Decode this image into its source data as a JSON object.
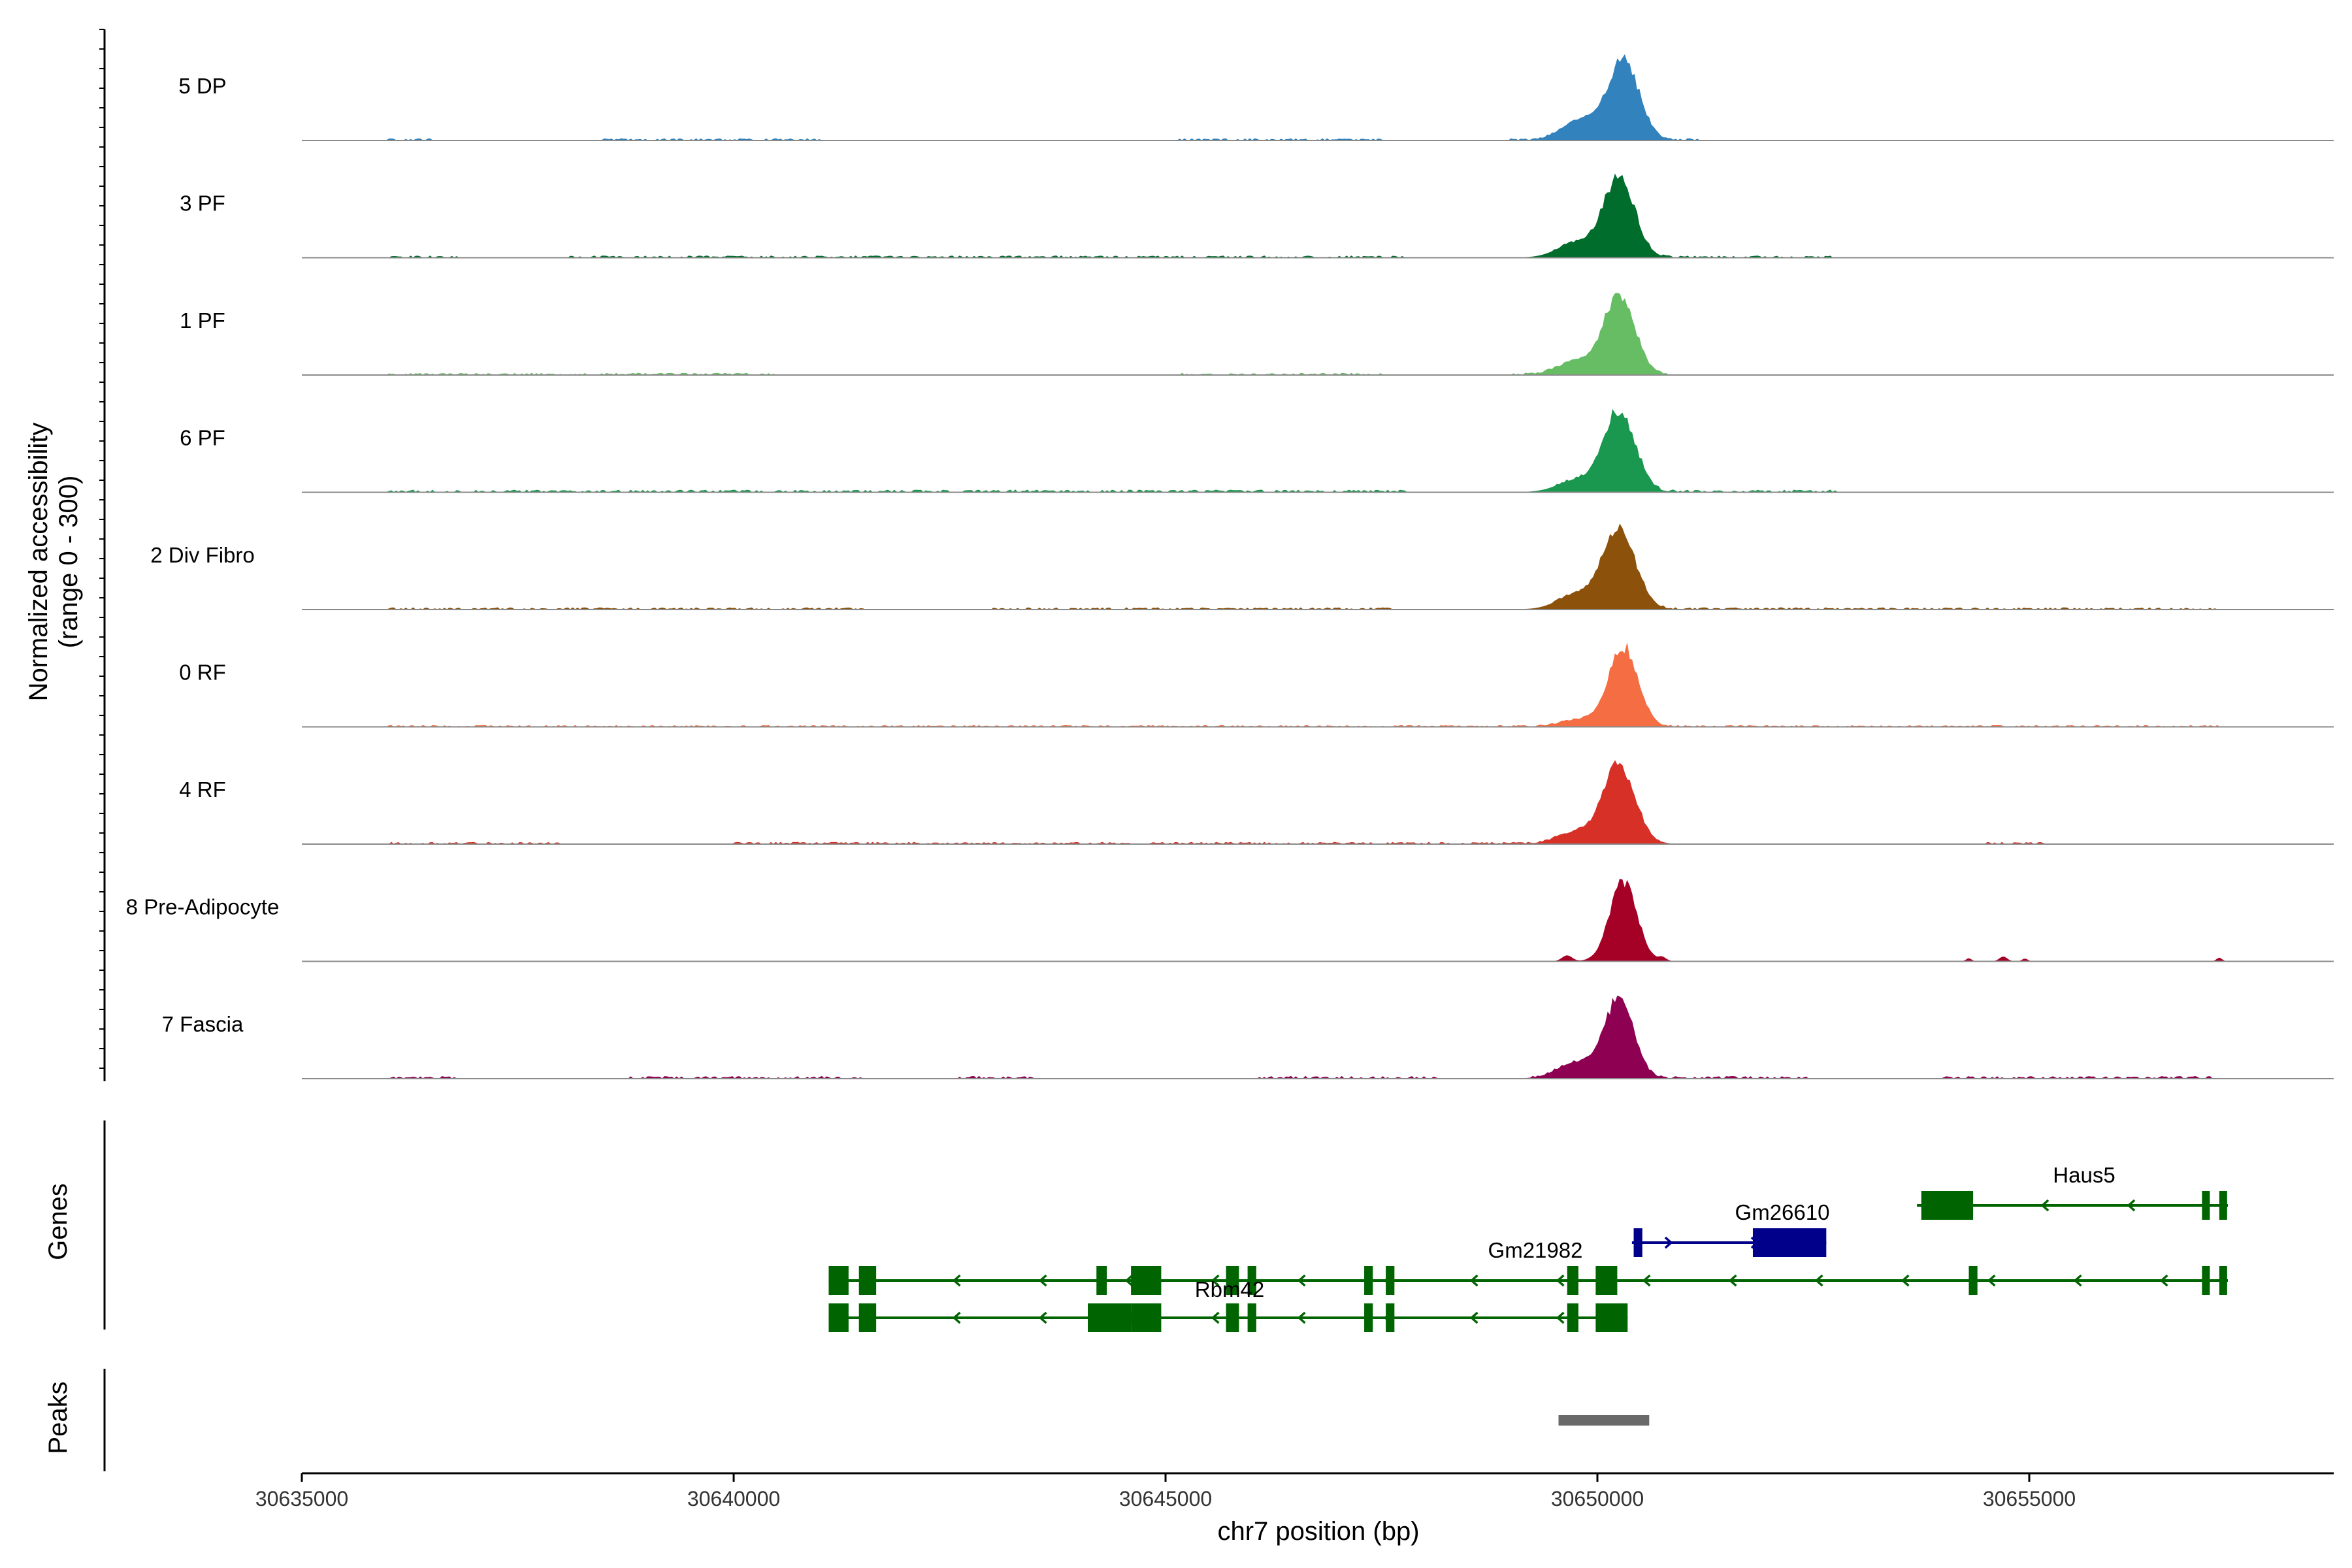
{
  "chart_data": {
    "type": "area",
    "title": "",
    "ylabel_line1": "Normalized accessibility",
    "ylabel_line2": "(range 0 - 300)",
    "xlabel": "chr7 position (bp)",
    "xlim": [
      30635000,
      30658400
    ],
    "ylim": [
      0,
      300
    ],
    "x_ticks": [
      30635000,
      30640000,
      30645000,
      30650000,
      30655000
    ],
    "x_tick_labels": [
      "30635000",
      "30640000",
      "30645000",
      "30650000",
      "30655000"
    ],
    "grid": false,
    "tracks_label_genes": "Genes",
    "tracks_label_peaks": "Peaks",
    "series": [
      {
        "name": "5 DP",
        "color": "#3182bd",
        "peak_center": 30650300,
        "peak_width": 320,
        "peak_height": 300,
        "shoulder_height": 70,
        "background_spans": [
          [
            30636000,
            30636500
          ],
          [
            30638500,
            30641000
          ],
          [
            30645000,
            30647500
          ],
          [
            30649000,
            30651200
          ]
        ],
        "background_level": 4,
        "side_peaks": []
      },
      {
        "name": "3 PF",
        "color": "#006d2c",
        "peak_center": 30650250,
        "peak_width": 320,
        "peak_height": 300,
        "shoulder_height": 50,
        "background_spans": [
          [
            30636000,
            30636800
          ],
          [
            30638000,
            30647800
          ],
          [
            30649500,
            30652700
          ]
        ],
        "background_level": 4,
        "side_peaks": []
      },
      {
        "name": "1 PF",
        "color": "#66bd63",
        "peak_center": 30650250,
        "peak_width": 320,
        "peak_height": 300,
        "shoulder_height": 45,
        "background_spans": [
          [
            30636000,
            30640500
          ],
          [
            30645000,
            30647500
          ],
          [
            30649000,
            30650800
          ]
        ],
        "background_level": 4,
        "side_peaks": []
      },
      {
        "name": "6 PF",
        "color": "#1a9850",
        "peak_center": 30650250,
        "peak_width": 330,
        "peak_height": 300,
        "shoulder_height": 40,
        "background_spans": [
          [
            30636000,
            30647800
          ],
          [
            30649500,
            30652800
          ]
        ],
        "background_level": 5,
        "side_peaks": []
      },
      {
        "name": "2 Div Fibro",
        "color": "#8c510a",
        "peak_center": 30650250,
        "peak_width": 340,
        "peak_height": 300,
        "shoulder_height": 50,
        "background_spans": [
          [
            30636000,
            30641500
          ],
          [
            30643000,
            30647700
          ],
          [
            30649500,
            30657200
          ]
        ],
        "background_level": 4,
        "side_peaks": []
      },
      {
        "name": "0 RF",
        "color": "#f46d43",
        "peak_center": 30650300,
        "peak_width": 300,
        "peak_height": 300,
        "shoulder_height": 25,
        "background_spans": [
          [
            30636000,
            30657200
          ]
        ],
        "background_level": 3,
        "side_peaks": []
      },
      {
        "name": "4 RF",
        "color": "#d73027",
        "peak_center": 30650250,
        "peak_width": 330,
        "peak_height": 300,
        "shoulder_height": 40,
        "background_spans": [
          [
            30636000,
            30638000
          ],
          [
            30640000,
            30650200
          ],
          [
            30654500,
            30655200
          ]
        ],
        "background_level": 4,
        "side_peaks": []
      },
      {
        "name": "8 Pre-Adipocyte",
        "color": "#a50026",
        "peak_center": 30650300,
        "peak_width": 280,
        "peak_height": 300,
        "shoulder_height": 0,
        "background_spans": [],
        "background_level": 0,
        "side_peaks": [
          [
            30649650,
            80,
            20
          ],
          [
            30650750,
            60,
            12
          ],
          [
            30654300,
            40,
            10
          ],
          [
            30654700,
            60,
            16
          ],
          [
            30654950,
            40,
            9
          ],
          [
            30657200,
            40,
            12
          ]
        ]
      },
      {
        "name": "7 Fascia",
        "color": "#8e0152",
        "peak_center": 30650250,
        "peak_width": 300,
        "peak_height": 300,
        "shoulder_height": 55,
        "background_spans": [
          [
            30636000,
            30636800
          ],
          [
            30638800,
            30641500
          ],
          [
            30642600,
            30643500
          ],
          [
            30646000,
            30648200
          ],
          [
            30649200,
            30652500
          ],
          [
            30654000,
            30657200
          ]
        ],
        "background_level": 5,
        "side_peaks": []
      }
    ],
    "genes": [
      {
        "name": "Haus5",
        "strand": "-",
        "color": "#006400",
        "row": 0,
        "start": 30653700,
        "end": 30657300,
        "exons": [
          [
            30653750,
            30654350,
            "wide"
          ],
          [
            30657000,
            30657080,
            "thin"
          ],
          [
            30657200,
            30657280,
            "thin"
          ]
        ]
      },
      {
        "name": "Gm26610",
        "strand": "+",
        "color": "#00008b",
        "row": 1,
        "start": 30650400,
        "end": 30652650,
        "exons": [
          [
            30650420,
            30650520,
            "thin"
          ],
          [
            30651800,
            30652650,
            "wide"
          ]
        ]
      },
      {
        "name": "Gm21982",
        "strand": "-",
        "color": "#006400",
        "row": 2,
        "start": 30649600,
        "end": 30650550,
        "exons": [
          [
            30649650,
            30649780,
            "thin"
          ],
          [
            30649980,
            30650230,
            "wide"
          ]
        ]
      },
      {
        "name": "Rbm42",
        "strand": "-",
        "color": "#006400",
        "row": 2,
        "start": 30641100,
        "end": 30657300,
        "exons": [
          [
            30641100,
            30641330,
            "wide"
          ],
          [
            30641450,
            30641650,
            "wide"
          ],
          [
            30644200,
            30644320,
            "thin"
          ],
          [
            30644600,
            30644950,
            "wide"
          ],
          [
            30645700,
            30645850,
            "thin"
          ],
          [
            30645950,
            30646050,
            "thin"
          ],
          [
            30647300,
            30647400,
            "thin"
          ],
          [
            30647550,
            30647650,
            "thin"
          ],
          [
            30654300,
            30654400,
            "thin"
          ],
          [
            30657000,
            30657080,
            "thin"
          ],
          [
            30657200,
            30657280,
            "thin"
          ]
        ]
      },
      {
        "name": "",
        "strand": "-",
        "color": "#006400",
        "row": 3,
        "start": 30641100,
        "end": 30650350,
        "exons": [
          [
            30641100,
            30641330,
            "wide"
          ],
          [
            30641450,
            30641650,
            "wide"
          ],
          [
            30644100,
            30644600,
            "wide"
          ],
          [
            30644600,
            30644950,
            "wide"
          ],
          [
            30645700,
            30645850,
            "thin"
          ],
          [
            30645950,
            30646050,
            "thin"
          ],
          [
            30647300,
            30647400,
            "thin"
          ],
          [
            30647550,
            30647650,
            "thin"
          ],
          [
            30649650,
            30649780,
            "thin"
          ],
          [
            30649980,
            30650350,
            "wide"
          ]
        ]
      }
    ],
    "peaks": [
      {
        "start": 30649550,
        "end": 30650600,
        "color": "#696969"
      }
    ]
  }
}
